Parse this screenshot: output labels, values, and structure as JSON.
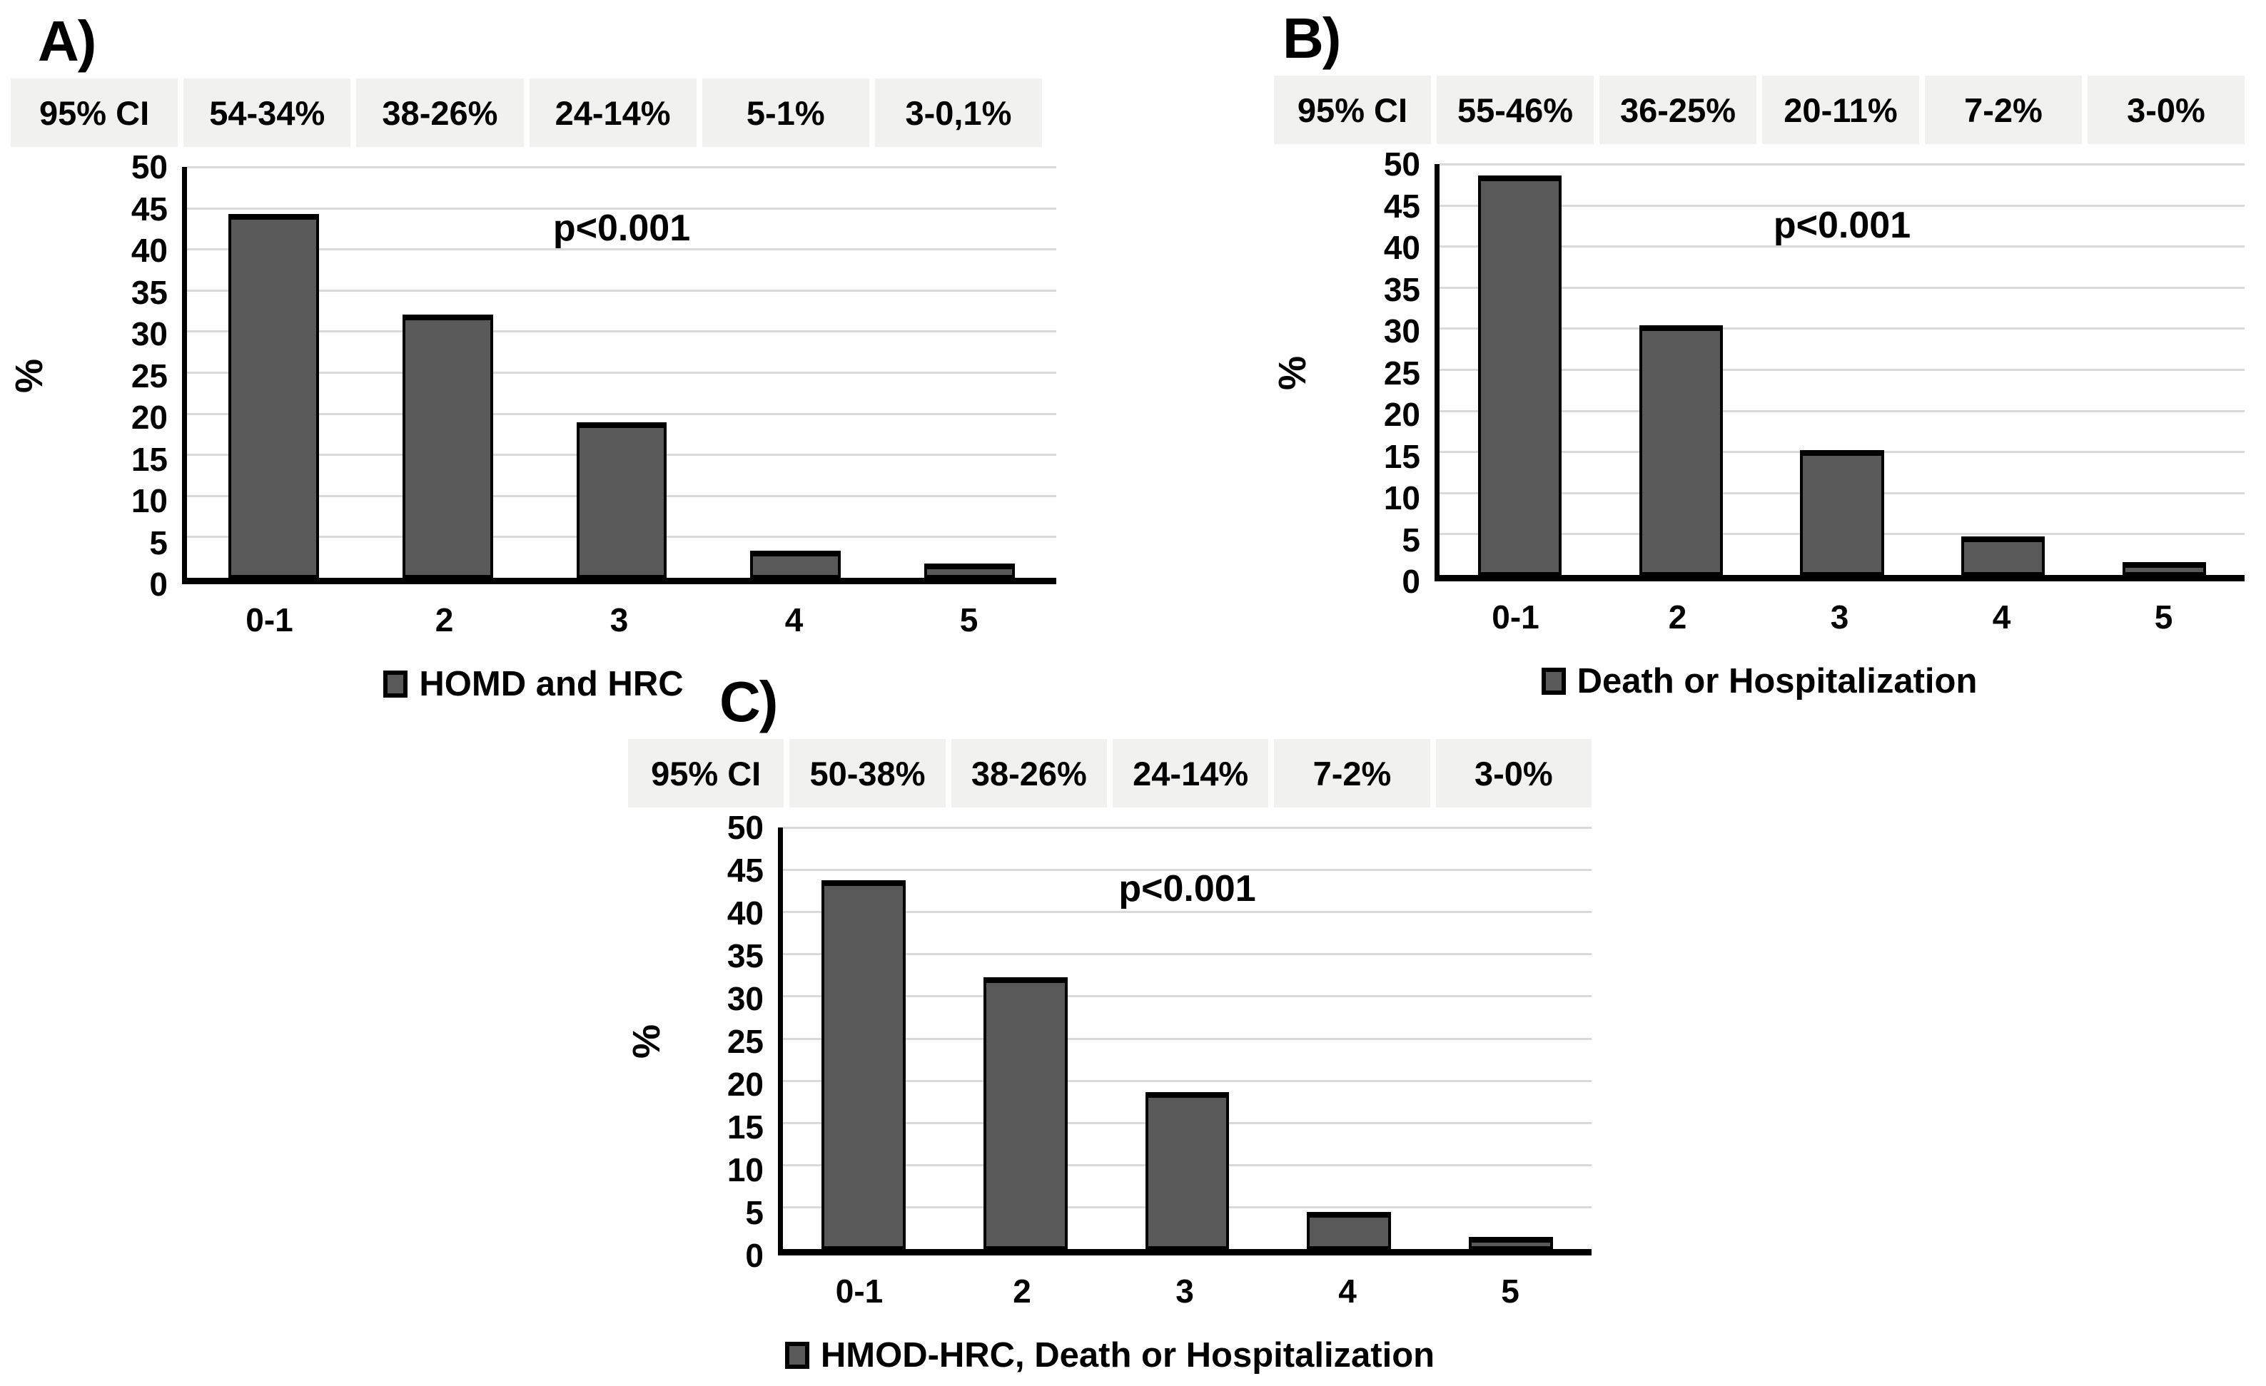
{
  "figure": {
    "background": "#ffffff",
    "colors": {
      "bar_fill": "#595959",
      "bar_border": "#000000",
      "gridline": "#d9d9d9",
      "table_cell_bg": "#f1f1f0",
      "text": "#000000"
    },
    "y_ticks": [
      0,
      5,
      10,
      15,
      20,
      25,
      30,
      35,
      40,
      45,
      50
    ]
  },
  "chart_data": [
    {
      "type": "bar",
      "panel_label": "A)",
      "ci_header": "95% CI",
      "ci_values": [
        "54-34%",
        "38-26%",
        "24-14%",
        "5-1%",
        "3-0,1%"
      ],
      "categories": [
        "0-1",
        "2",
        "3",
        "4",
        "5"
      ],
      "values": [
        44.3,
        32.0,
        18.9,
        3.3,
        1.7
      ],
      "p_label": "p<0.001",
      "legend": "HOMD and HRC",
      "ylabel": "%",
      "ylim": [
        0,
        50
      ],
      "y_tick_step": 5,
      "grid": true,
      "legend_position": "bottom"
    },
    {
      "type": "bar",
      "panel_label": "B)",
      "ci_header": "95% CI",
      "ci_values": [
        "55-46%",
        "36-25%",
        "20-11%",
        "7-2%",
        "3-0%"
      ],
      "categories": [
        "0-1",
        "2",
        "3",
        "4",
        "5"
      ],
      "values": [
        48.6,
        30.4,
        15.2,
        4.7,
        1.6
      ],
      "p_label": "p<0.001",
      "legend": "Death or Hospitalization",
      "ylabel": "%",
      "ylim": [
        0,
        50
      ],
      "y_tick_step": 5,
      "grid": true,
      "legend_position": "bottom"
    },
    {
      "type": "bar",
      "panel_label": "C)",
      "ci_header": "95% CI",
      "ci_values": [
        "50-38%",
        "38-26%",
        "24-14%",
        "7-2%",
        "3-0%"
      ],
      "categories": [
        "0-1",
        "2",
        "3",
        "4",
        "5"
      ],
      "values": [
        43.7,
        32.2,
        18.6,
        4.4,
        1.4
      ],
      "p_label": "p<0.001",
      "legend": "HMOD-HRC, Death or Hospitalization",
      "ylabel": "%",
      "ylim": [
        0,
        50
      ],
      "y_tick_step": 5,
      "grid": true,
      "legend_position": "bottom"
    }
  ]
}
